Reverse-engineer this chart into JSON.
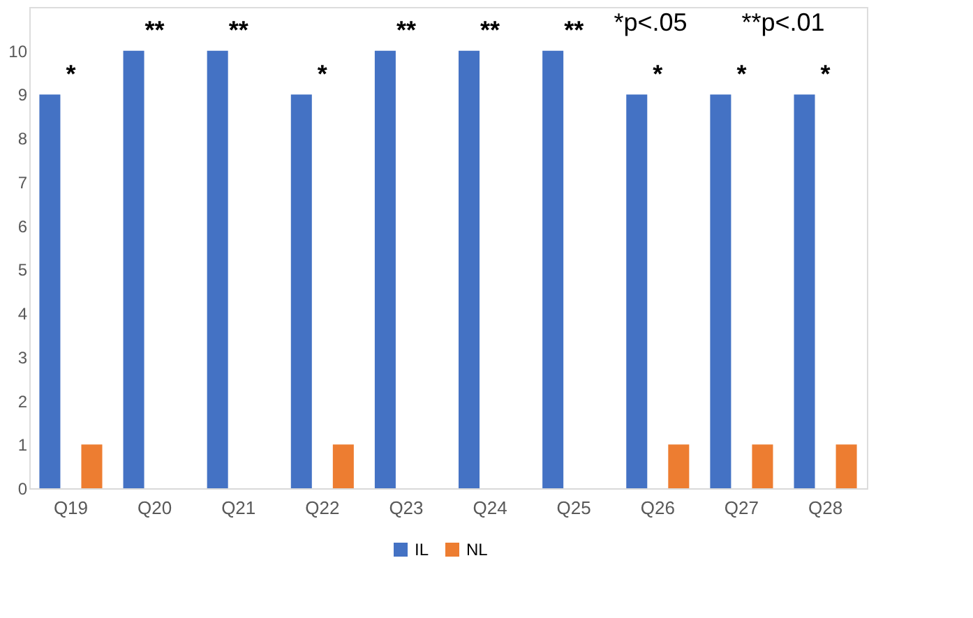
{
  "chart_data": {
    "type": "bar",
    "categories": [
      "Q19",
      "Q20",
      "Q21",
      "Q22",
      "Q23",
      "Q24",
      "Q25",
      "Q26",
      "Q27",
      "Q28"
    ],
    "series": [
      {
        "name": "IL",
        "color": "#4472c4",
        "values": [
          9,
          10,
          10,
          9,
          10,
          10,
          10,
          9,
          9,
          9
        ]
      },
      {
        "name": "NL",
        "color": "#ed7d31",
        "values": [
          1,
          0,
          0,
          1,
          0,
          0,
          0,
          1,
          1,
          1
        ]
      }
    ],
    "ylim": [
      0,
      11
    ],
    "yticks": [
      0,
      1,
      2,
      3,
      4,
      5,
      6,
      7,
      8,
      9,
      10
    ],
    "grid": false,
    "legend": "bottom",
    "annotations": [
      "*",
      "**",
      "**",
      "*",
      "**",
      "**",
      "**",
      "*",
      "*",
      "*",
      "*p<.05",
      "**p<.01"
    ]
  }
}
